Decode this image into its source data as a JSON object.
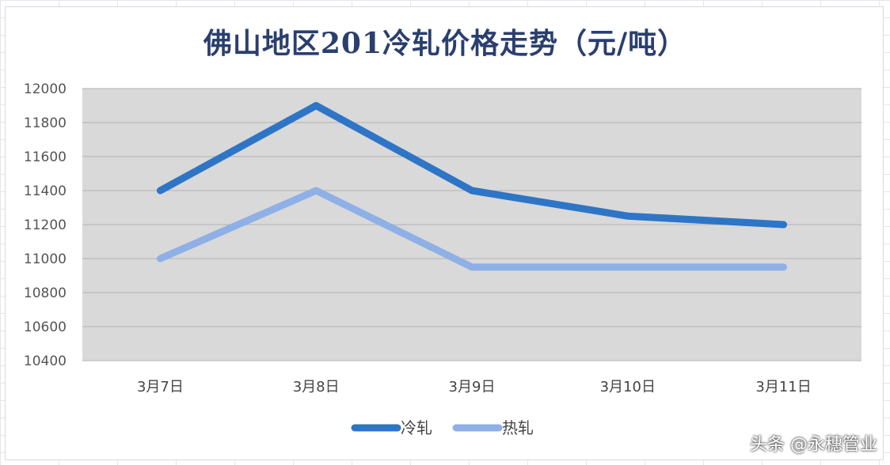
{
  "chart_data": {
    "type": "line",
    "title": "佛山地区201冷轧价格走势（元/吨）",
    "categories": [
      "3月7日",
      "3月8日",
      "3月9日",
      "3月10日",
      "3月11日"
    ],
    "series": [
      {
        "name": "冷轧",
        "values": [
          11400,
          11900,
          11400,
          11250,
          11200
        ],
        "color": "#2e75c6"
      },
      {
        "name": "热轧",
        "values": [
          11000,
          11400,
          10950,
          10950,
          10950
        ],
        "color": "#8fb0e6"
      }
    ],
    "ylim": [
      10400,
      12000
    ],
    "yticks": [
      "12000",
      "11800",
      "11600",
      "11400",
      "11200",
      "11000",
      "10800",
      "10600",
      "10400"
    ],
    "grid": true,
    "legend": "bottom",
    "plot_background": "#d9d9d9"
  },
  "watermark": "头条 @永穗管业"
}
